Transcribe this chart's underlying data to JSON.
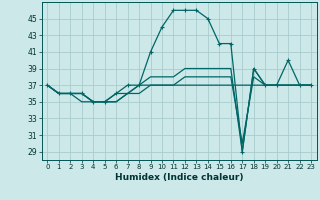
{
  "title": "",
  "xlabel": "Humidex (Indice chaleur)",
  "bg_color": "#cce8e8",
  "grid_color": "#aacccc",
  "line_color": "#006666",
  "xlim": [
    -0.5,
    23.5
  ],
  "ylim": [
    28,
    47
  ],
  "yticks": [
    29,
    31,
    33,
    35,
    37,
    39,
    41,
    43,
    45
  ],
  "xticks": [
    0,
    1,
    2,
    3,
    4,
    5,
    6,
    7,
    8,
    9,
    10,
    11,
    12,
    13,
    14,
    15,
    16,
    17,
    18,
    19,
    20,
    21,
    22,
    23
  ],
  "lines": [
    {
      "x": [
        0,
        1,
        2,
        3,
        4,
        5,
        6,
        7,
        8,
        9,
        10,
        11,
        12,
        13,
        14,
        15,
        16,
        17,
        18,
        19,
        20,
        21,
        22,
        23
      ],
      "y": [
        37,
        36,
        36,
        36,
        35,
        35,
        36,
        37,
        37,
        41,
        44,
        46,
        46,
        46,
        45,
        42,
        42,
        29,
        39,
        37,
        37,
        40,
        37,
        37
      ],
      "marker": "+"
    },
    {
      "x": [
        0,
        1,
        2,
        3,
        4,
        5,
        6,
        7,
        8,
        9,
        10,
        11,
        12,
        13,
        14,
        15,
        16,
        17,
        18,
        19,
        20,
        21,
        22,
        23
      ],
      "y": [
        37,
        36,
        36,
        36,
        35,
        35,
        36,
        36,
        37,
        38,
        38,
        38,
        39,
        39,
        39,
        39,
        39,
        29,
        39,
        37,
        37,
        37,
        37,
        37
      ],
      "marker": null
    },
    {
      "x": [
        0,
        1,
        2,
        3,
        4,
        5,
        6,
        7,
        8,
        9,
        10,
        11,
        12,
        13,
        14,
        15,
        16,
        17,
        18,
        19,
        20,
        21,
        22,
        23
      ],
      "y": [
        37,
        36,
        36,
        36,
        35,
        35,
        35,
        36,
        37,
        37,
        37,
        37,
        38,
        38,
        38,
        38,
        38,
        30,
        38,
        37,
        37,
        37,
        37,
        37
      ],
      "marker": null
    },
    {
      "x": [
        0,
        1,
        2,
        3,
        4,
        5,
        6,
        7,
        8,
        9,
        10,
        11,
        12,
        13,
        14,
        15,
        16,
        17,
        18,
        19,
        20,
        21,
        22,
        23
      ],
      "y": [
        37,
        36,
        36,
        35,
        35,
        35,
        35,
        36,
        36,
        37,
        37,
        37,
        37,
        37,
        37,
        37,
        37,
        37,
        37,
        37,
        37,
        37,
        37,
        37
      ],
      "marker": null
    }
  ]
}
